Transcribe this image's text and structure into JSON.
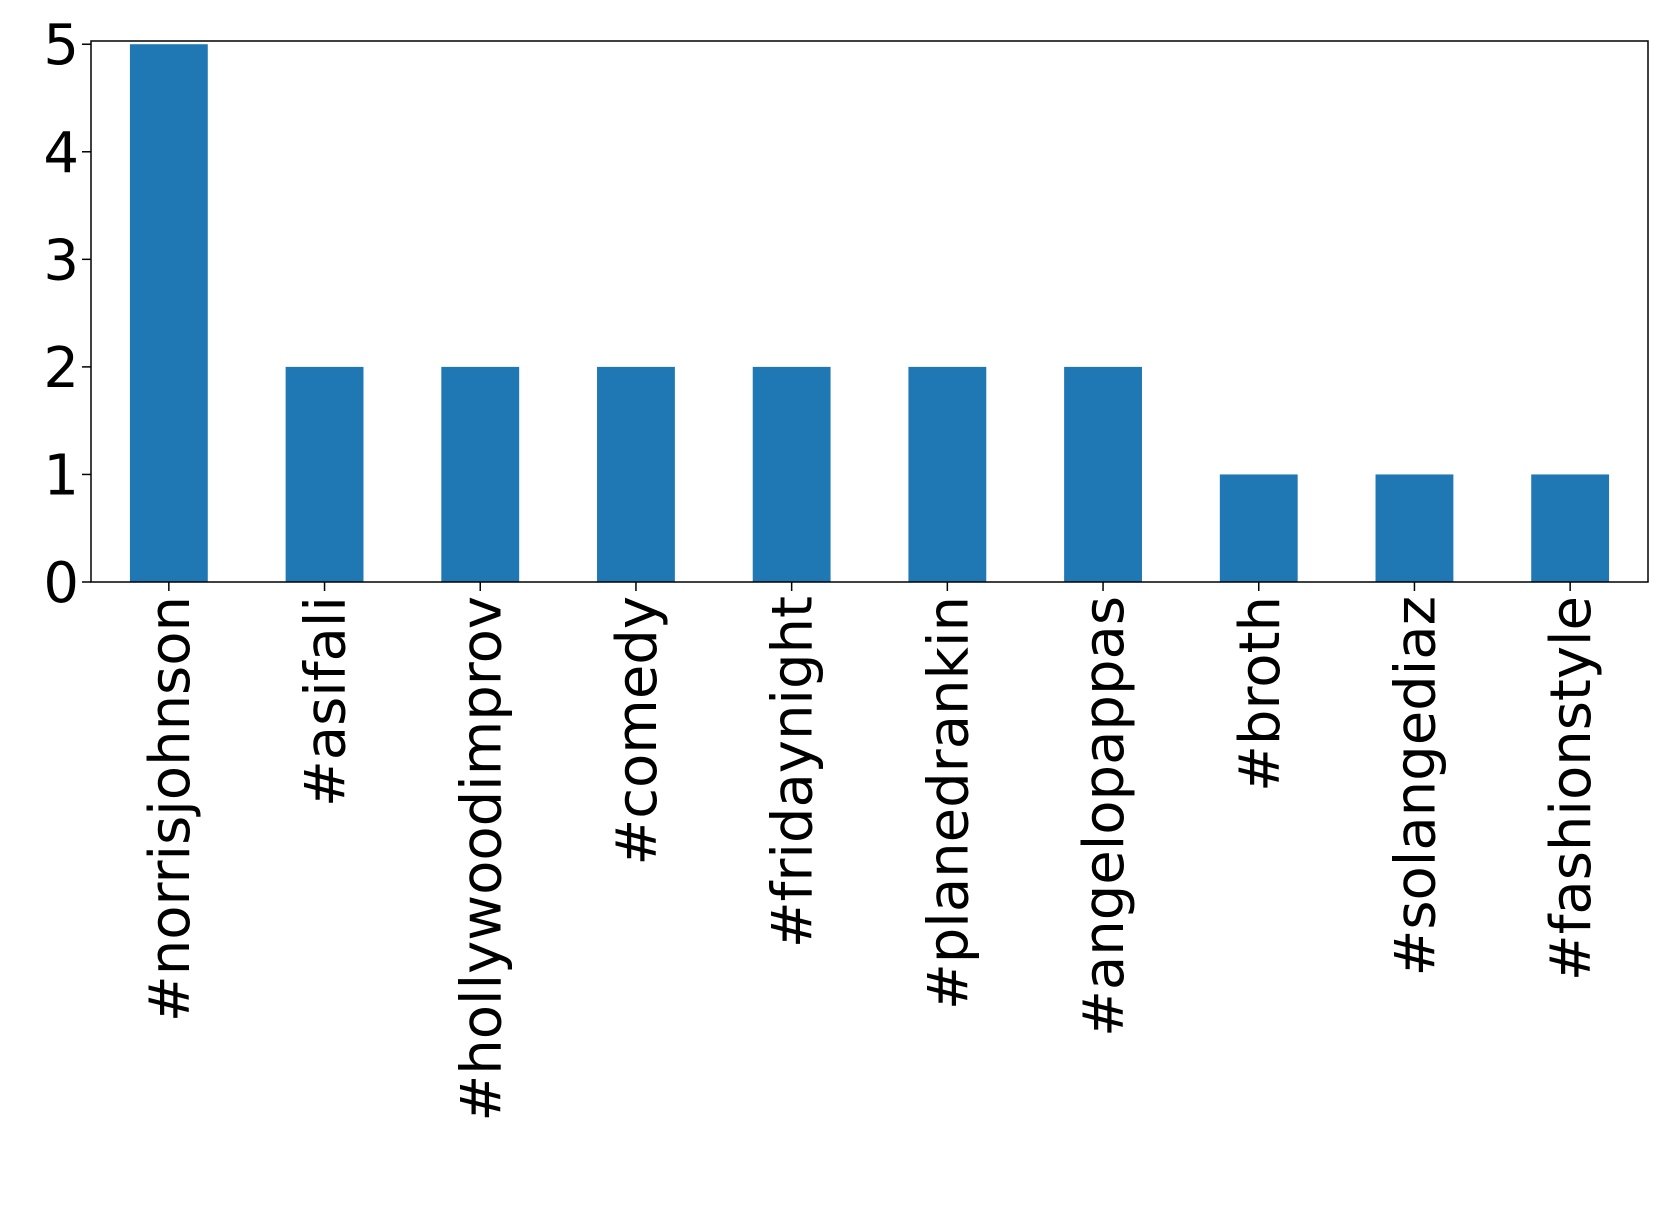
{
  "chart_data": {
    "type": "bar",
    "categories": [
      "#norrisjohnson",
      "#asifali",
      "#hollywoodimprov",
      "#comedy",
      "#fridaynight",
      "#planedrankin",
      "#angelopappas",
      "#broth",
      "#solangediaz",
      "#fashionstyle"
    ],
    "values": [
      5,
      2,
      2,
      2,
      2,
      2,
      2,
      1,
      1,
      1
    ],
    "color": "#1f77b4",
    "ylim": [
      0,
      5.03
    ],
    "yticks": [
      0,
      1,
      2,
      3,
      4,
      5
    ],
    "grid": false
  }
}
